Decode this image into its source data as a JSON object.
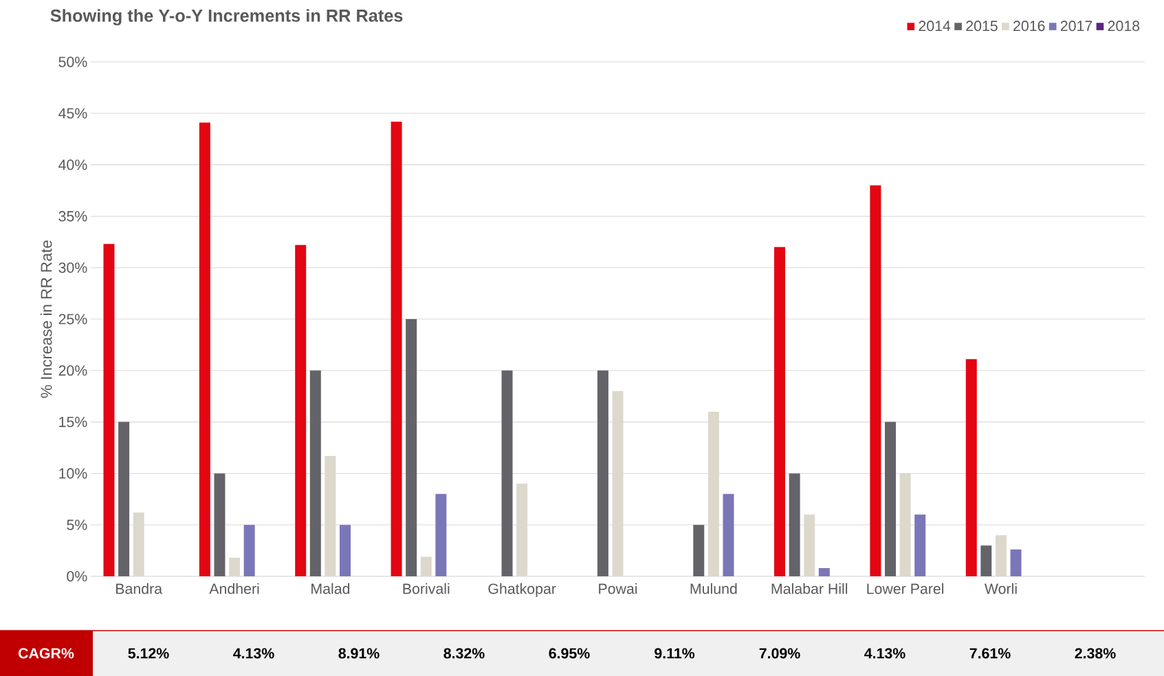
{
  "chart_data": {
    "type": "bar",
    "title": "Showing the Y-o-Y Increments in RR Rates",
    "ylabel": "% Increase in RR Rate",
    "categories": [
      "Bandra",
      "Andheri",
      "Malad",
      "Borivali",
      "Ghatkopar",
      "Powai",
      "Mulund",
      "Malabar Hill",
      "Lower Parel",
      "Worli",
      null
    ],
    "series": [
      {
        "name": "2014",
        "color": "#e30613",
        "values": [
          32.3,
          44.1,
          32.2,
          44.2,
          null,
          null,
          null,
          32,
          38,
          21.1,
          null
        ]
      },
      {
        "name": "2015",
        "color": "#636369",
        "values": [
          15,
          10,
          20,
          25,
          20,
          20,
          5,
          10,
          15,
          3,
          null
        ]
      },
      {
        "name": "2016",
        "color": "#ddd8cc",
        "values": [
          6.2,
          1.8,
          11.7,
          1.9,
          9,
          18,
          16,
          6,
          10,
          4,
          null
        ]
      },
      {
        "name": "2017",
        "color": "#7b76b8",
        "values": [
          null,
          5,
          5,
          8,
          null,
          null,
          8,
          0.8,
          6,
          2.6,
          null
        ]
      },
      {
        "name": "2018",
        "color": "#5c2483",
        "values": [
          null,
          null,
          null,
          null,
          null,
          null,
          null,
          null,
          null,
          null,
          null
        ]
      }
    ],
    "ylim": [
      0,
      50
    ],
    "yticks": [
      {
        "value": 0,
        "label": "0%"
      },
      {
        "value": 5,
        "label": "5%"
      },
      {
        "value": 10,
        "label": "10%"
      },
      {
        "value": 15,
        "label": "15%"
      },
      {
        "value": 20,
        "label": "20%"
      },
      {
        "value": 25,
        "label": "25%"
      },
      {
        "value": 30,
        "label": "30%"
      },
      {
        "value": 35,
        "label": "35%"
      },
      {
        "value": 40,
        "label": "40%"
      },
      {
        "value": 45,
        "label": "45%"
      },
      {
        "value": 50,
        "label": "50%"
      }
    ],
    "grid": "y",
    "legend": "top right",
    "annotations": [
      "CAGR%",
      "5.12%",
      "4.13%",
      "8.91%",
      "8.32%",
      "6.95%",
      "9.11%",
      "7.09%",
      "4.13%",
      "7.61%",
      "2.38%"
    ]
  }
}
